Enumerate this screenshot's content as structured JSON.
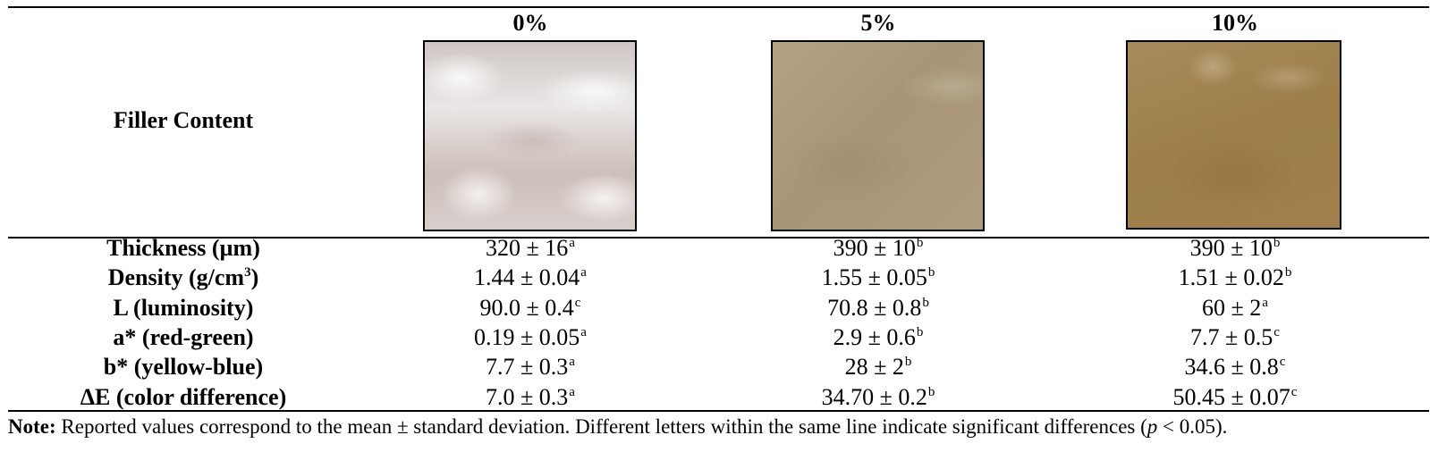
{
  "header": {
    "row_label": "Filler Content",
    "columns": [
      "0%",
      "5%",
      "10%"
    ]
  },
  "rows": [
    {
      "label": "Thickness (µm)",
      "label_sup": "",
      "label_tail": "",
      "values": [
        {
          "v": "320 ± 16",
          "s": "a"
        },
        {
          "v": "390 ± 10",
          "s": "b"
        },
        {
          "v": "390 ± 10",
          "s": "b"
        }
      ]
    },
    {
      "label": "Density (g/cm",
      "label_sup": "3",
      "label_tail": ")",
      "values": [
        {
          "v": "1.44 ± 0.04",
          "s": "a"
        },
        {
          "v": "1.55 ± 0.05",
          "s": "b"
        },
        {
          "v": "1.51 ± 0.02",
          "s": "b"
        }
      ]
    },
    {
      "label": "L (luminosity)",
      "label_sup": "",
      "label_tail": "",
      "values": [
        {
          "v": "90.0 ± 0.4",
          "s": "c"
        },
        {
          "v": "70.8 ± 0.8",
          "s": "b"
        },
        {
          "v": "60 ± 2",
          "s": "a"
        }
      ]
    },
    {
      "label": "a* (red-green)",
      "label_sup": "",
      "label_tail": "",
      "values": [
        {
          "v": "0.19 ± 0.05",
          "s": "a"
        },
        {
          "v": "2.9 ± 0.6",
          "s": "b"
        },
        {
          "v": "7.7 ± 0.5",
          "s": "c"
        }
      ]
    },
    {
      "label": "b* (yellow-blue)",
      "label_sup": "",
      "label_tail": "",
      "values": [
        {
          "v": "7.7 ± 0.3",
          "s": "a"
        },
        {
          "v": "28 ± 2",
          "s": "b"
        },
        {
          "v": "34.6 ± 0.8",
          "s": "c"
        }
      ]
    },
    {
      "label": "ΔE (color difference)",
      "label_sup": "",
      "label_tail": "",
      "values": [
        {
          "v": "7.0 ± 0.3",
          "s": "a"
        },
        {
          "v": "34.70 ± 0.2",
          "s": "b"
        },
        {
          "v": "50.45 ± 0.07",
          "s": "c"
        }
      ]
    }
  ],
  "note": {
    "bold": "Note:",
    "text": " Reported values correspond to the mean ± standard deviation. Different letters within the same line indicate significant differences (",
    "italic": "p",
    "tail": " < 0.05)."
  }
}
